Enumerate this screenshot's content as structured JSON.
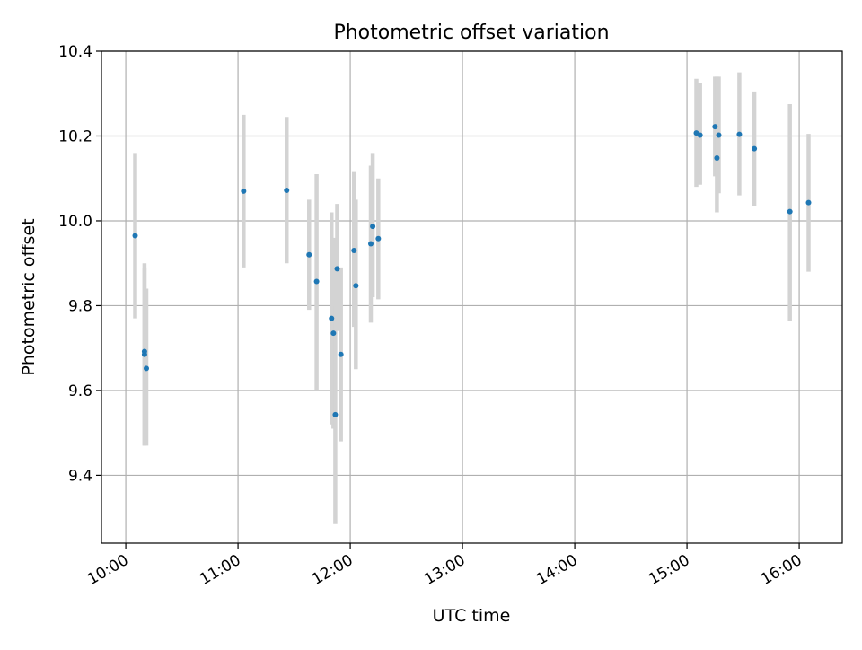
{
  "chart_data": {
    "type": "scatter",
    "title": "Photometric offset variation",
    "xlabel": "UTC time",
    "ylabel": "Photometric offset",
    "x_unit": "UTC time of day (HH:MM)",
    "xlim": [
      "09:47",
      "16:23"
    ],
    "ylim": [
      9.24,
      10.4
    ],
    "x_ticks": [
      "10:00",
      "11:00",
      "12:00",
      "13:00",
      "14:00",
      "15:00",
      "16:00"
    ],
    "y_ticks": [
      9.4,
      9.6,
      9.8,
      10.0,
      10.2,
      10.4
    ],
    "y_tick_labels": [
      "9.4",
      "9.6",
      "9.8",
      "10.0",
      "10.2",
      "10.4"
    ],
    "grid": true,
    "legend": "none",
    "point_color": "#1f77b4",
    "errorbar_color": "#d3d3d3",
    "points": [
      {
        "x": "10:05",
        "y": 9.965,
        "ylo": 9.77,
        "yhi": 10.16
      },
      {
        "x": "10:10",
        "y": 9.685,
        "ylo": 9.47,
        "yhi": 9.9
      },
      {
        "x": "10:10",
        "y": 9.692,
        "ylo": 9.47,
        "yhi": 9.89
      },
      {
        "x": "10:11",
        "y": 9.652,
        "ylo": 9.47,
        "yhi": 9.84
      },
      {
        "x": "11:03",
        "y": 10.07,
        "ylo": 9.89,
        "yhi": 10.25
      },
      {
        "x": "11:26",
        "y": 10.072,
        "ylo": 9.9,
        "yhi": 10.245
      },
      {
        "x": "11:38",
        "y": 9.92,
        "ylo": 9.79,
        "yhi": 10.05
      },
      {
        "x": "11:42",
        "y": 9.857,
        "ylo": 9.6,
        "yhi": 10.11
      },
      {
        "x": "11:50",
        "y": 9.77,
        "ylo": 9.52,
        "yhi": 10.02
      },
      {
        "x": "11:51",
        "y": 9.735,
        "ylo": 9.51,
        "yhi": 9.96
      },
      {
        "x": "11:52",
        "y": 9.543,
        "ylo": 9.285,
        "yhi": 9.8
      },
      {
        "x": "11:53",
        "y": 9.887,
        "ylo": 9.74,
        "yhi": 10.04
      },
      {
        "x": "11:55",
        "y": 9.685,
        "ylo": 9.48,
        "yhi": 9.89
      },
      {
        "x": "12:02",
        "y": 9.93,
        "ylo": 9.75,
        "yhi": 10.115
      },
      {
        "x": "12:03",
        "y": 9.847,
        "ylo": 9.65,
        "yhi": 10.05
      },
      {
        "x": "12:11",
        "y": 9.946,
        "ylo": 9.76,
        "yhi": 10.13
      },
      {
        "x": "12:12",
        "y": 9.987,
        "ylo": 9.82,
        "yhi": 10.16
      },
      {
        "x": "12:15",
        "y": 9.958,
        "ylo": 9.815,
        "yhi": 10.1
      },
      {
        "x": "15:05",
        "y": 10.207,
        "ylo": 10.08,
        "yhi": 10.335
      },
      {
        "x": "15:07",
        "y": 10.202,
        "ylo": 10.085,
        "yhi": 10.325
      },
      {
        "x": "15:15",
        "y": 10.222,
        "ylo": 10.105,
        "yhi": 10.34
      },
      {
        "x": "15:16",
        "y": 10.148,
        "ylo": 10.02,
        "yhi": 10.34
      },
      {
        "x": "15:17",
        "y": 10.202,
        "ylo": 10.065,
        "yhi": 10.34
      },
      {
        "x": "15:28",
        "y": 10.204,
        "ylo": 10.06,
        "yhi": 10.35
      },
      {
        "x": "15:36",
        "y": 10.17,
        "ylo": 10.035,
        "yhi": 10.305
      },
      {
        "x": "15:55",
        "y": 10.022,
        "ylo": 9.765,
        "yhi": 10.275
      },
      {
        "x": "16:05",
        "y": 10.043,
        "ylo": 9.88,
        "yhi": 10.205
      }
    ]
  }
}
